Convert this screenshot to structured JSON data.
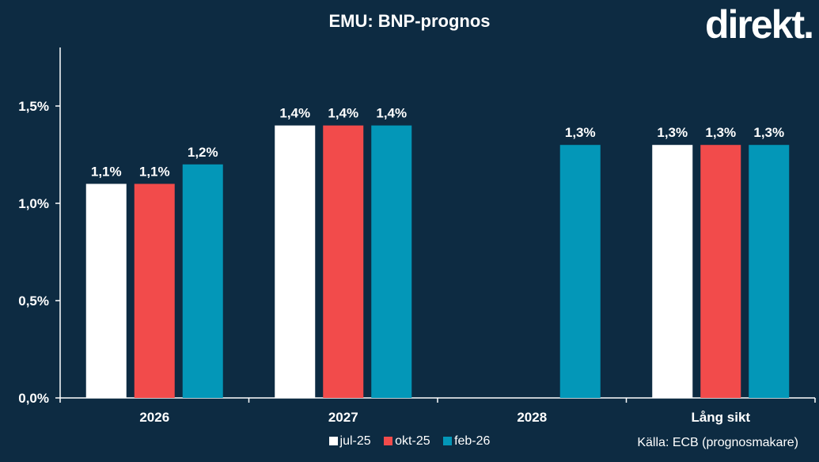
{
  "header": {
    "title": "EMU: BNP-prognos",
    "logo": "direkt."
  },
  "source": "Källa:  ECB (prognosmakare)",
  "chart_data": {
    "type": "bar",
    "title": "EMU: BNP-prognos",
    "categories": [
      "2026",
      "2027",
      "2028",
      "Lång sikt"
    ],
    "series": [
      {
        "name": "jul-25",
        "color": "#ffffff",
        "values": [
          1.1,
          1.4,
          null,
          1.3
        ],
        "labels": [
          "1,1%",
          "1,4%",
          "",
          "1,3%"
        ]
      },
      {
        "name": "okt-25",
        "color": "#f24b4b",
        "values": [
          1.1,
          1.4,
          null,
          1.3
        ],
        "labels": [
          "1,1%",
          "1,4%",
          "",
          "1,3%"
        ]
      },
      {
        "name": "feb-26",
        "color": "#0397b8",
        "values": [
          1.2,
          1.4,
          1.3,
          1.3
        ],
        "labels": [
          "1,2%",
          "1,4%",
          "1,3%",
          "1,3%"
        ]
      }
    ],
    "yticks": [
      0,
      0.5,
      1.0,
      1.5
    ],
    "ytick_labels": [
      "0,0%",
      "0,5%",
      "1,0%",
      "1,5%"
    ],
    "ylim": [
      0,
      1.8
    ],
    "xlabel": "",
    "ylabel": "",
    "grid": false,
    "legend": "bottom-center"
  }
}
